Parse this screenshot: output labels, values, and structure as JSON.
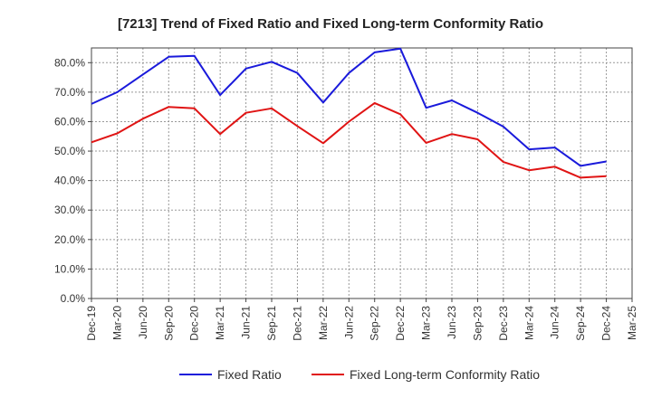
{
  "chart_data": {
    "type": "line",
    "title": "[7213]  Trend of Fixed Ratio and Fixed Long-term Conformity Ratio",
    "xlabel": "",
    "ylabel": "",
    "x_ticks": [
      "Dec-19",
      "Mar-20",
      "Jun-20",
      "Sep-20",
      "Dec-20",
      "Mar-21",
      "Jun-21",
      "Sep-21",
      "Dec-21",
      "Mar-22",
      "Jun-22",
      "Sep-22",
      "Dec-22",
      "Mar-23",
      "Jun-23",
      "Sep-23",
      "Dec-23",
      "Mar-24",
      "Jun-24",
      "Sep-24",
      "Dec-24",
      "Mar-25"
    ],
    "y_ticks": [
      "0.0%",
      "10.0%",
      "20.0%",
      "30.0%",
      "40.0%",
      "50.0%",
      "60.0%",
      "70.0%",
      "80.0%"
    ],
    "ylim": [
      0,
      85
    ],
    "y_unit": "%",
    "grid": true,
    "legend_position": "bottom",
    "series": [
      {
        "name": "Fixed Ratio",
        "color": "#1a1adb",
        "x": [
          "Dec-19",
          "Mar-20",
          "Jun-20",
          "Sep-20",
          "Dec-20",
          "Mar-21",
          "Jun-21",
          "Sep-21",
          "Dec-21",
          "Mar-22",
          "Jun-22",
          "Sep-22",
          "Dec-22",
          "Mar-23",
          "Jun-23",
          "Sep-23",
          "Dec-23",
          "Mar-24",
          "Jun-24",
          "Sep-24",
          "Dec-24"
        ],
        "values": [
          66.0,
          70.0,
          76.0,
          82.0,
          82.3,
          69.0,
          78.0,
          80.3,
          76.5,
          66.5,
          76.5,
          83.5,
          84.8,
          64.7,
          67.2,
          63.0,
          58.3,
          50.6,
          51.2,
          45.0,
          46.5
        ]
      },
      {
        "name": "Fixed Long-term Conformity Ratio",
        "color": "#e01414",
        "x": [
          "Dec-19",
          "Mar-20",
          "Jun-20",
          "Sep-20",
          "Dec-20",
          "Mar-21",
          "Jun-21",
          "Sep-21",
          "Dec-21",
          "Mar-22",
          "Jun-22",
          "Sep-22",
          "Dec-22",
          "Mar-23",
          "Jun-23",
          "Sep-23",
          "Dec-23",
          "Mar-24",
          "Jun-24",
          "Sep-24",
          "Dec-24"
        ],
        "values": [
          53.0,
          56.0,
          61.0,
          65.0,
          64.5,
          55.8,
          63.0,
          64.5,
          58.5,
          52.7,
          60.0,
          66.3,
          62.5,
          52.8,
          55.8,
          54.0,
          46.3,
          43.5,
          44.7,
          41.0,
          41.5
        ]
      }
    ]
  }
}
